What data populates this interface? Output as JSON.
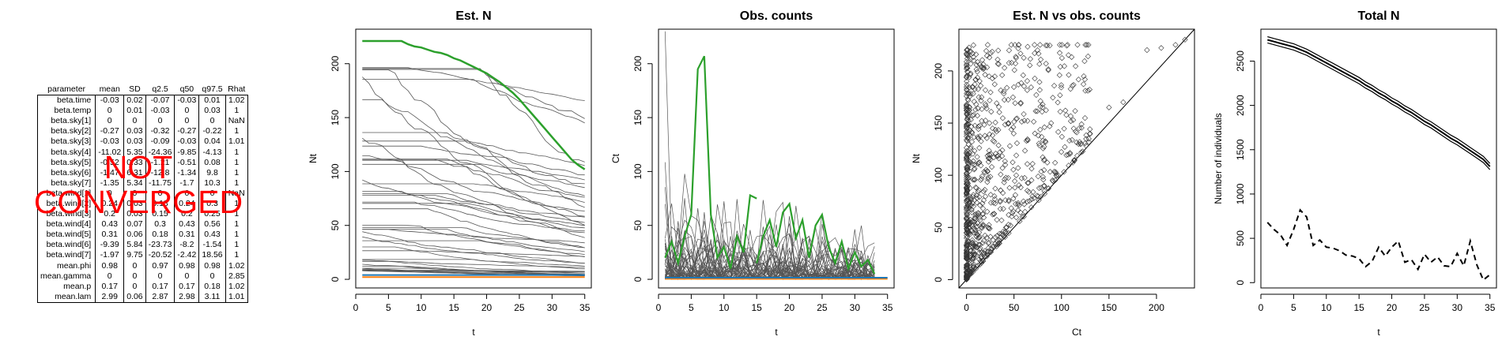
{
  "stats_table": {
    "headers": [
      "parameter",
      "mean",
      "SD",
      "q2.5",
      "q50",
      "q97.5",
      "Rhat"
    ],
    "rows": [
      [
        "beta.time",
        "-0.03",
        "0.02",
        "-0.07",
        "-0.03",
        "0.01",
        "1.02"
      ],
      [
        "beta.temp",
        "0",
        "0.01",
        "-0.03",
        "0",
        "0.03",
        "1"
      ],
      [
        "beta.sky[1]",
        "0",
        "0",
        "0",
        "0",
        "0",
        "NaN"
      ],
      [
        "beta.sky[2]",
        "-0.27",
        "0.03",
        "-0.32",
        "-0.27",
        "-0.22",
        "1"
      ],
      [
        "beta.sky[3]",
        "-0.03",
        "0.03",
        "-0.09",
        "-0.03",
        "0.04",
        "1.01"
      ],
      [
        "beta.sky[4]",
        "-11.02",
        "5.35",
        "-24.36",
        "-9.85",
        "-4.13",
        "1"
      ],
      [
        "beta.sky[5]",
        "-0.52",
        "0.33",
        "-1.21",
        "-0.51",
        "0.08",
        "1"
      ],
      [
        "beta.sky[6]",
        "-1.47",
        "6.31",
        "-12.8",
        "-1.34",
        "9.8",
        "1"
      ],
      [
        "beta.sky[7]",
        "-1.35",
        "5.34",
        "-11.75",
        "-1.7",
        "10.3",
        "1"
      ],
      [
        "beta.wind[1]",
        "0",
        "0",
        "0",
        "0",
        "0",
        "NaN"
      ],
      [
        "beta.wind[2]",
        "0.24",
        "0.03",
        "0.18",
        "0.24",
        "0.3",
        "1"
      ],
      [
        "beta.wind[3]",
        "0.2",
        "0.03",
        "0.15",
        "0.2",
        "0.25",
        "1"
      ],
      [
        "beta.wind[4]",
        "0.43",
        "0.07",
        "0.3",
        "0.43",
        "0.56",
        "1"
      ],
      [
        "beta.wind[5]",
        "0.31",
        "0.06",
        "0.18",
        "0.31",
        "0.43",
        "1"
      ],
      [
        "beta.wind[6]",
        "-9.39",
        "5.84",
        "-23.73",
        "-8.2",
        "-1.54",
        "1"
      ],
      [
        "beta.wind[7]",
        "-1.97",
        "9.75",
        "-20.52",
        "-2.42",
        "18.56",
        "1"
      ],
      [
        "mean.phi",
        "0.98",
        "0",
        "0.97",
        "0.98",
        "0.98",
        "1.02"
      ],
      [
        "mean.gamma",
        "0",
        "0",
        "0",
        "0",
        "0",
        "2.85"
      ],
      [
        "mean.p",
        "0.17",
        "0",
        "0.17",
        "0.17",
        "0.18",
        "1.02"
      ],
      [
        "mean.lam",
        "2.99",
        "0.06",
        "2.87",
        "2.98",
        "3.11",
        "1.01"
      ]
    ]
  },
  "stamp": {
    "line1": "NOT",
    "line2": "CONVERGED",
    "color": "#ff0000"
  },
  "chart_data": [
    {
      "type": "line",
      "title": "Est. N",
      "xlabel": "t",
      "ylabel": "Nt",
      "xlim": [
        0,
        36
      ],
      "ylim": [
        -8,
        232
      ],
      "xticks": [
        0,
        5,
        10,
        15,
        20,
        25,
        30,
        35
      ],
      "yticks": [
        0,
        50,
        100,
        150,
        200
      ],
      "highlight_color": "#2ca02c",
      "highlight": [
        [
          1,
          221
        ],
        [
          2,
          221
        ],
        [
          3,
          221
        ],
        [
          4,
          221
        ],
        [
          5,
          221
        ],
        [
          6,
          221
        ],
        [
          7,
          221
        ],
        [
          8,
          218
        ],
        [
          9,
          216
        ],
        [
          10,
          215
        ],
        [
          11,
          213
        ],
        [
          12,
          211
        ],
        [
          13,
          210
        ],
        [
          14,
          208
        ],
        [
          15,
          205
        ],
        [
          16,
          203
        ],
        [
          17,
          200
        ],
        [
          18,
          197
        ],
        [
          19,
          194
        ],
        [
          20,
          191
        ],
        [
          21,
          187
        ],
        [
          22,
          183
        ],
        [
          23,
          178
        ],
        [
          24,
          173
        ],
        [
          25,
          167
        ],
        [
          26,
          160
        ],
        [
          27,
          153
        ],
        [
          28,
          146
        ],
        [
          29,
          139
        ],
        [
          30,
          132
        ],
        [
          31,
          125
        ],
        [
          32,
          118
        ],
        [
          33,
          111
        ],
        [
          34,
          106
        ],
        [
          35,
          102
        ]
      ],
      "background_series_count": 45,
      "background_color": "#555555",
      "baseline_colors": [
        "#ff7f0e",
        "#1f77b4"
      ]
    },
    {
      "type": "line",
      "title": "Obs. counts",
      "xlabel": "t",
      "ylabel": "Ct",
      "xlim": [
        0,
        36
      ],
      "ylim": [
        -8,
        232
      ],
      "xticks": [
        0,
        5,
        10,
        15,
        20,
        25,
        30,
        35
      ],
      "yticks": [
        0,
        50,
        100,
        150,
        200
      ],
      "highlight_color": "#2ca02c",
      "highlight_series": [
        [
          [
            1,
            20
          ],
          [
            2,
            35
          ],
          [
            3,
            15
          ],
          [
            4,
            40
          ],
          [
            5,
            60
          ],
          [
            6,
            195
          ],
          [
            7,
            207
          ],
          [
            8,
            60
          ],
          [
            9,
            20
          ],
          [
            10,
            30
          ],
          [
            11,
            10
          ],
          [
            12,
            40
          ],
          [
            13,
            25
          ],
          [
            14,
            78
          ],
          [
            15,
            75
          ]
        ],
        [
          [
            15,
            15
          ],
          [
            16,
            40
          ],
          [
            17,
            55
          ],
          [
            18,
            30
          ],
          [
            19,
            62
          ],
          [
            20,
            70
          ],
          [
            21,
            38
          ],
          [
            22,
            55
          ],
          [
            23,
            20
          ],
          [
            24,
            50
          ],
          [
            25,
            60
          ],
          [
            26,
            30
          ],
          [
            27,
            15
          ],
          [
            28,
            35
          ],
          [
            29,
            10
          ],
          [
            30,
            25
          ],
          [
            31,
            12
          ],
          [
            32,
            18
          ],
          [
            33,
            5
          ]
        ]
      ],
      "background_series_count": 40,
      "background_color": "#555555",
      "baseline_colors": [
        "#ff7f0e",
        "#1f77b4"
      ]
    },
    {
      "type": "scatter",
      "title": "Est. N vs obs. counts",
      "xlabel": "Ct",
      "ylabel": "Nt",
      "xlim": [
        -8,
        240
      ],
      "ylim": [
        -8,
        240
      ],
      "xticks": [
        0,
        50,
        100,
        150,
        200
      ],
      "yticks": [
        0,
        50,
        100,
        150,
        200
      ],
      "identity_line": true,
      "marker": "open-diamond",
      "point_count": 900
    },
    {
      "type": "line",
      "title": "Total N",
      "xlabel": "t",
      "ylabel": "Number of individuals",
      "xlim": [
        0,
        36
      ],
      "ylim": [
        -60,
        2860
      ],
      "xticks": [
        0,
        5,
        10,
        15,
        20,
        25,
        30,
        35
      ],
      "yticks": [
        0,
        500,
        1000,
        1500,
        2000,
        2500
      ],
      "series": [
        {
          "style": "solid-band",
          "values": [
            [
              1,
              2740
            ],
            [
              2,
              2720
            ],
            [
              3,
              2700
            ],
            [
              4,
              2680
            ],
            [
              5,
              2660
            ],
            [
              6,
              2630
            ],
            [
              7,
              2600
            ],
            [
              8,
              2560
            ],
            [
              9,
              2520
            ],
            [
              10,
              2480
            ],
            [
              11,
              2440
            ],
            [
              12,
              2400
            ],
            [
              13,
              2360
            ],
            [
              14,
              2320
            ],
            [
              15,
              2280
            ],
            [
              16,
              2230
            ],
            [
              17,
              2190
            ],
            [
              18,
              2140
            ],
            [
              19,
              2100
            ],
            [
              20,
              2050
            ],
            [
              21,
              2010
            ],
            [
              22,
              1960
            ],
            [
              23,
              1920
            ],
            [
              24,
              1870
            ],
            [
              25,
              1820
            ],
            [
              26,
              1780
            ],
            [
              27,
              1730
            ],
            [
              28,
              1680
            ],
            [
              29,
              1630
            ],
            [
              30,
              1590
            ],
            [
              31,
              1540
            ],
            [
              32,
              1490
            ],
            [
              33,
              1440
            ],
            [
              34,
              1390
            ],
            [
              35,
              1310
            ]
          ]
        },
        {
          "style": "dashed",
          "values": [
            [
              1,
              680
            ],
            [
              2,
              600
            ],
            [
              3,
              540
            ],
            [
              4,
              420
            ],
            [
              5,
              600
            ],
            [
              6,
              820
            ],
            [
              7,
              740
            ],
            [
              8,
              420
            ],
            [
              9,
              480
            ],
            [
              10,
              400
            ],
            [
              11,
              390
            ],
            [
              12,
              360
            ],
            [
              13,
              310
            ],
            [
              14,
              300
            ],
            [
              15,
              270
            ],
            [
              16,
              180
            ],
            [
              17,
              240
            ],
            [
              18,
              400
            ],
            [
              19,
              300
            ],
            [
              20,
              400
            ],
            [
              21,
              470
            ],
            [
              22,
              230
            ],
            [
              23,
              260
            ],
            [
              24,
              150
            ],
            [
              25,
              320
            ],
            [
              26,
              230
            ],
            [
              27,
              290
            ],
            [
              28,
              190
            ],
            [
              29,
              180
            ],
            [
              30,
              330
            ],
            [
              31,
              190
            ],
            [
              32,
              470
            ],
            [
              33,
              200
            ],
            [
              34,
              30
            ],
            [
              35,
              90
            ]
          ]
        }
      ]
    }
  ]
}
